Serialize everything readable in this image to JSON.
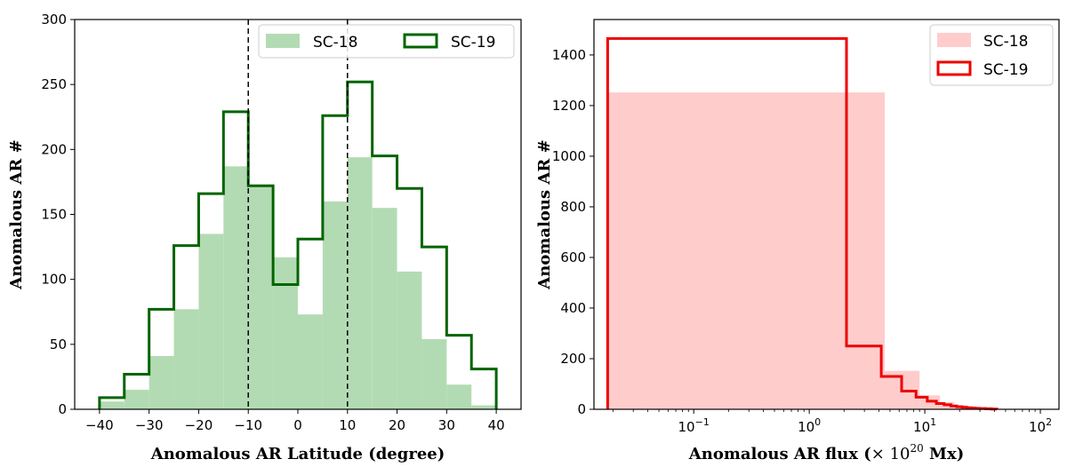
{
  "chart_data": [
    {
      "type": "bar",
      "subtype": "histogram",
      "title": "",
      "xlabel": "Anomalous AR Latitude (degree)",
      "ylabel": "Anomalous AR #",
      "xlim": [
        -45,
        45
      ],
      "ylim": [
        0,
        300
      ],
      "xticks": [
        -40,
        -30,
        -20,
        -10,
        0,
        10,
        20,
        30,
        40
      ],
      "yticks": [
        0,
        50,
        100,
        150,
        200,
        250,
        300
      ],
      "bin_edges": [
        -40,
        -35,
        -30,
        -25,
        -20,
        -15,
        -10,
        -5,
        0,
        5,
        10,
        15,
        20,
        25,
        30,
        35,
        40
      ],
      "series": [
        {
          "name": "SC-18",
          "style": "filled",
          "color": "#b3dbb3",
          "values": [
            6,
            15,
            41,
            77,
            135,
            187,
            172,
            117,
            73,
            160,
            194,
            155,
            106,
            54,
            19,
            3
          ]
        },
        {
          "name": "SC-19",
          "style": "step",
          "color": "#006400",
          "values": [
            9,
            27,
            77,
            126,
            166,
            229,
            172,
            96,
            131,
            226,
            252,
            195,
            170,
            125,
            57,
            31
          ]
        }
      ],
      "vlines": [
        -10,
        10
      ],
      "legend": {
        "location": "top-right",
        "ncol": 2
      }
    },
    {
      "type": "bar",
      "subtype": "histogram",
      "title": "",
      "xlabel_prefix": "Anomalous AR flux (",
      "xlabel_times": "×",
      "xlabel_base": " 10",
      "xlabel_exp": "20",
      "xlabel_suffix": " Mx)",
      "ylabel": "Anomalous AR #",
      "xscale": "log",
      "xlim": [
        0.0137,
        145
      ],
      "ylim": [
        0,
        1540
      ],
      "xticks": [
        {
          "value": 0.1,
          "base": "10",
          "exp": "−1"
        },
        {
          "value": 1,
          "base": "10",
          "exp": "0"
        },
        {
          "value": 10,
          "base": "10",
          "exp": "1"
        },
        {
          "value": 100,
          "base": "10",
          "exp": "2"
        }
      ],
      "yticks": [
        0,
        200,
        400,
        600,
        800,
        1000,
        1200,
        1400
      ],
      "series": [
        {
          "name": "SC-18",
          "style": "filled",
          "color": "#ffcccc",
          "bin_edges": [
            0.018,
            4.5,
            9,
            13.5,
            18,
            22.5,
            27,
            31.5,
            36,
            40.5,
            45
          ],
          "values": [
            1252,
            152,
            55,
            28,
            16,
            10,
            6,
            4,
            3,
            2
          ]
        },
        {
          "name": "SC-19",
          "style": "step",
          "color": "#ee0000",
          "bin_edges": [
            0.018,
            2.1,
            4.2,
            6.3,
            8.4,
            10.5,
            12.6,
            14.7,
            16.8,
            18.9,
            21,
            23.1,
            25.2,
            27.3,
            29.4,
            31.5,
            33.6,
            35.7,
            37.8,
            39.9,
            42
          ],
          "values": [
            1465,
            250,
            130,
            72,
            48,
            32,
            23,
            18,
            13,
            10,
            8,
            6,
            5,
            4,
            3,
            3,
            2,
            2,
            1,
            1
          ]
        }
      ],
      "legend": {
        "location": "top-right",
        "ncol": 1
      }
    }
  ]
}
